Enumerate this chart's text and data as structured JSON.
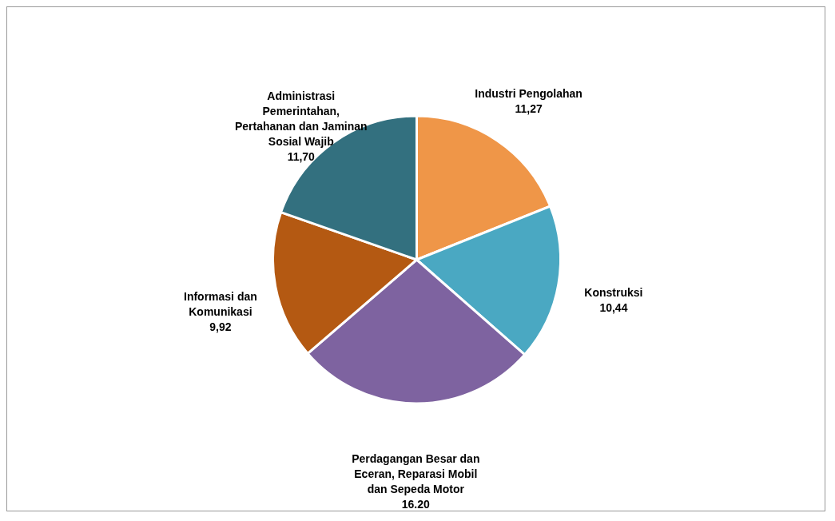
{
  "chart_data": {
    "type": "pie",
    "categories": [
      "Industri Pengolahan",
      "Konstruksi",
      "Perdagangan Besar dan Eceran, Reparasi Mobil dan Sepeda Motor",
      "Informasi dan Komunikasi",
      "Administrasi Pemerintahan, Pertahanan dan Jaminan Sosial Wajib"
    ],
    "values": [
      11.27,
      10.44,
      16.2,
      9.92,
      11.7
    ],
    "value_labels": [
      "11,27",
      "10,44",
      "16.20",
      "9,92",
      "11,70"
    ],
    "colors": [
      "#ef9648",
      "#4aa8c2",
      "#7e63a0",
      "#b45912",
      "#33707f"
    ]
  }
}
